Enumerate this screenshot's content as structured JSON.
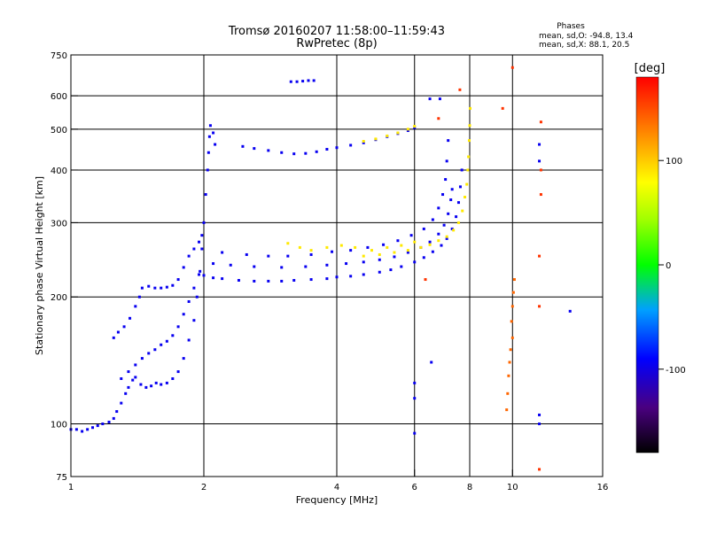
{
  "chart_data": {
    "type": "scatter",
    "title": "Tromsø 20160207 11:58:00–11:59:43",
    "subtitle": "RwPretec (8p)",
    "xlabel": "Frequency [MHz]",
    "ylabel": "Stationary phase Virtual Height [km]",
    "x_scale": "log",
    "y_scale": "log",
    "xlim": [
      1,
      16
    ],
    "ylim": [
      75,
      750
    ],
    "x_ticks": [
      {
        "v": 1,
        "label": "1"
      },
      {
        "v": 2,
        "label": "2"
      },
      {
        "v": 4,
        "label": "4"
      },
      {
        "v": 6,
        "label": "6"
      },
      {
        "v": 8,
        "label": "8"
      },
      {
        "v": 10,
        "label": "10"
      },
      {
        "v": 16,
        "label": "16"
      }
    ],
    "y_ticks": [
      {
        "v": 75,
        "label": "75"
      },
      {
        "v": 100,
        "label": "100"
      },
      {
        "v": 200,
        "label": "200"
      },
      {
        "v": 300,
        "label": "300"
      },
      {
        "v": 400,
        "label": "400"
      },
      {
        "v": 500,
        "label": "500"
      },
      {
        "v": 600,
        "label": "600"
      },
      {
        "v": 750,
        "label": "750"
      }
    ],
    "grid_x": [
      2,
      4,
      6,
      8,
      10
    ],
    "grid_y": [
      100,
      200,
      300,
      400,
      500,
      600
    ],
    "phase_box": {
      "title": "Phases",
      "line1": "mean, sd,O: -94.8, 13.4",
      "line2": "mean, sd,X:  88.1, 20.5"
    },
    "colorbar": {
      "label": "[deg]",
      "range": [
        -180,
        180
      ],
      "ticks": [
        {
          "v": 100,
          "label": "100"
        },
        {
          "v": 0,
          "label": "0"
        },
        {
          "v": -100,
          "label": "-100"
        }
      ]
    },
    "series": [
      {
        "id": "lowband-O",
        "phase": -95,
        "points": [
          [
            1.0,
            97
          ],
          [
            1.03,
            97
          ],
          [
            1.06,
            96
          ],
          [
            1.09,
            97
          ],
          [
            1.12,
            98
          ],
          [
            1.15,
            99
          ],
          [
            1.18,
            100
          ],
          [
            1.22,
            101
          ],
          [
            1.25,
            103
          ],
          [
            1.27,
            107
          ],
          [
            1.3,
            112
          ],
          [
            1.33,
            118
          ],
          [
            1.35,
            122
          ],
          [
            1.38,
            127
          ],
          [
            1.4,
            129
          ],
          [
            1.44,
            124
          ],
          [
            1.48,
            122
          ],
          [
            1.52,
            123
          ],
          [
            1.56,
            125
          ],
          [
            1.6,
            124
          ],
          [
            1.65,
            125
          ],
          [
            1.7,
            128
          ],
          [
            1.75,
            133
          ],
          [
            1.8,
            143
          ],
          [
            1.85,
            158
          ],
          [
            1.9,
            176
          ],
          [
            1.93,
            200
          ],
          [
            1.96,
            230
          ],
          [
            1.98,
            260
          ],
          [
            2.0,
            300
          ],
          [
            2.02,
            350
          ],
          [
            2.04,
            400
          ],
          [
            2.05,
            440
          ],
          [
            2.06,
            480
          ],
          [
            2.07,
            510
          ],
          [
            2.1,
            490
          ],
          [
            2.12,
            460
          ]
        ]
      },
      {
        "id": "lowband-O-upper",
        "phase": -95,
        "points": [
          [
            1.25,
            160
          ],
          [
            1.28,
            165
          ],
          [
            1.32,
            170
          ],
          [
            1.36,
            178
          ],
          [
            1.4,
            190
          ],
          [
            1.43,
            200
          ],
          [
            1.45,
            210
          ],
          [
            1.5,
            212
          ],
          [
            1.55,
            210
          ],
          [
            1.6,
            210
          ],
          [
            1.65,
            211
          ],
          [
            1.7,
            213
          ],
          [
            1.75,
            220
          ],
          [
            1.8,
            235
          ],
          [
            1.85,
            250
          ],
          [
            1.9,
            260
          ],
          [
            1.95,
            270
          ],
          [
            1.98,
            280
          ]
        ]
      },
      {
        "id": "lowband-secondary",
        "phase": -95,
        "points": [
          [
            1.3,
            128
          ],
          [
            1.35,
            133
          ],
          [
            1.4,
            138
          ],
          [
            1.45,
            143
          ],
          [
            1.5,
            147
          ],
          [
            1.55,
            150
          ],
          [
            1.6,
            154
          ],
          [
            1.65,
            157
          ],
          [
            1.7,
            162
          ],
          [
            1.75,
            170
          ],
          [
            1.8,
            182
          ],
          [
            1.85,
            195
          ],
          [
            1.9,
            210
          ],
          [
            1.95,
            226
          ]
        ]
      },
      {
        "id": "F-region-O",
        "phase": -95,
        "points": [
          [
            2.0,
            225
          ],
          [
            2.1,
            222
          ],
          [
            2.2,
            221
          ],
          [
            2.4,
            219
          ],
          [
            2.6,
            218
          ],
          [
            2.8,
            218
          ],
          [
            3.0,
            218
          ],
          [
            3.2,
            219
          ],
          [
            3.5,
            220
          ],
          [
            3.8,
            221
          ],
          [
            4.0,
            223
          ],
          [
            4.3,
            224
          ],
          [
            4.6,
            226
          ],
          [
            5.0,
            229
          ],
          [
            5.3,
            232
          ],
          [
            5.6,
            236
          ],
          [
            6.0,
            242
          ],
          [
            6.3,
            248
          ],
          [
            6.6,
            256
          ],
          [
            6.9,
            265
          ],
          [
            7.1,
            275
          ],
          [
            7.3,
            290
          ],
          [
            7.45,
            310
          ],
          [
            7.55,
            335
          ],
          [
            7.62,
            365
          ],
          [
            7.68,
            400
          ]
        ]
      },
      {
        "id": "F-region-O2",
        "phase": -95,
        "points": [
          [
            2.1,
            240
          ],
          [
            2.3,
            238
          ],
          [
            2.6,
            236
          ],
          [
            3.0,
            235
          ],
          [
            3.4,
            236
          ],
          [
            3.8,
            238
          ],
          [
            4.2,
            240
          ],
          [
            4.6,
            242
          ],
          [
            5.0,
            245
          ],
          [
            5.4,
            249
          ],
          [
            5.8,
            255
          ],
          [
            6.2,
            262
          ],
          [
            6.5,
            270
          ],
          [
            6.8,
            282
          ],
          [
            7.0,
            296
          ],
          [
            7.15,
            315
          ],
          [
            7.25,
            340
          ],
          [
            7.3,
            360
          ]
        ]
      },
      {
        "id": "F-region-O-multi",
        "phase": -95,
        "points": [
          [
            2.2,
            255
          ],
          [
            2.5,
            252
          ],
          [
            2.8,
            250
          ],
          [
            3.1,
            250
          ],
          [
            3.5,
            252
          ],
          [
            3.9,
            256
          ],
          [
            4.3,
            258
          ],
          [
            4.7,
            262
          ],
          [
            5.1,
            266
          ],
          [
            5.5,
            272
          ],
          [
            5.9,
            280
          ],
          [
            6.3,
            290
          ],
          [
            6.6,
            305
          ],
          [
            6.8,
            325
          ],
          [
            6.95,
            350
          ],
          [
            7.05,
            380
          ],
          [
            7.1,
            420
          ],
          [
            7.15,
            470
          ]
        ]
      },
      {
        "id": "F-region-X",
        "phase": 88,
        "points": [
          [
            4.6,
            250
          ],
          [
            5.0,
            252
          ],
          [
            5.4,
            255
          ],
          [
            5.8,
            258
          ],
          [
            6.2,
            262
          ],
          [
            6.5,
            266
          ],
          [
            6.8,
            272
          ],
          [
            7.1,
            278
          ],
          [
            7.35,
            288
          ],
          [
            7.55,
            300
          ],
          [
            7.7,
            320
          ],
          [
            7.8,
            345
          ],
          [
            7.88,
            370
          ],
          [
            7.92,
            400
          ],
          [
            7.95,
            430
          ],
          [
            7.98,
            470
          ],
          [
            8.0,
            510
          ],
          [
            8.02,
            560
          ]
        ]
      },
      {
        "id": "X-scattered",
        "phase": 88,
        "points": [
          [
            3.1,
            268
          ],
          [
            3.3,
            262
          ],
          [
            3.5,
            258
          ],
          [
            3.8,
            262
          ],
          [
            4.1,
            265
          ],
          [
            4.4,
            262
          ],
          [
            4.8,
            258
          ],
          [
            5.2,
            262
          ],
          [
            5.6,
            265
          ],
          [
            6.0,
            270
          ]
        ]
      },
      {
        "id": "echo-2F",
        "phase": -95,
        "points": [
          [
            2.45,
            455
          ],
          [
            2.6,
            450
          ],
          [
            2.8,
            445
          ],
          [
            3.0,
            440
          ],
          [
            3.2,
            437
          ],
          [
            3.4,
            438
          ],
          [
            3.6,
            442
          ],
          [
            3.8,
            448
          ],
          [
            4.0,
            452
          ],
          [
            4.3,
            458
          ],
          [
            4.6,
            464
          ],
          [
            4.9,
            472
          ],
          [
            5.2,
            480
          ],
          [
            5.5,
            488
          ],
          [
            5.8,
            496
          ],
          [
            6.0,
            504
          ]
        ]
      },
      {
        "id": "echo-2F-X",
        "phase": 88,
        "points": [
          [
            4.6,
            468
          ],
          [
            4.9,
            474
          ],
          [
            5.2,
            482
          ],
          [
            5.5,
            490
          ],
          [
            5.8,
            500
          ],
          [
            6.0,
            508
          ]
        ]
      },
      {
        "id": "sporadic-top",
        "phase": -95,
        "points": [
          [
            3.15,
            648
          ],
          [
            3.25,
            648
          ],
          [
            3.35,
            650
          ],
          [
            3.45,
            652
          ],
          [
            3.55,
            652
          ]
        ]
      },
      {
        "id": "scatter-noise",
        "phase": 140,
        "points": [
          [
            10.0,
            190
          ],
          [
            10.05,
            205
          ],
          [
            10.1,
            220
          ],
          [
            9.95,
            175
          ],
          [
            10.0,
            160
          ],
          [
            9.9,
            150
          ],
          [
            9.85,
            140
          ],
          [
            9.8,
            130
          ],
          [
            9.75,
            118
          ],
          [
            9.7,
            108
          ]
        ]
      },
      {
        "id": "scatter-noise-blue",
        "phase": -95,
        "points": [
          [
            11.5,
            460
          ],
          [
            11.5,
            420
          ],
          [
            11.5,
            105
          ],
          [
            11.5,
            100
          ],
          [
            13.5,
            185
          ],
          [
            6.5,
            590
          ],
          [
            6.85,
            590
          ],
          [
            6.55,
            140
          ],
          [
            6.0,
            125
          ],
          [
            6.0,
            115
          ],
          [
            6.0,
            95
          ]
        ]
      },
      {
        "id": "scatter-noise-warm",
        "phase": 160,
        "points": [
          [
            11.6,
            520
          ],
          [
            11.6,
            400
          ],
          [
            11.6,
            350
          ],
          [
            11.5,
            250
          ],
          [
            11.5,
            190
          ],
          [
            10.0,
            700
          ],
          [
            9.5,
            560
          ],
          [
            6.8,
            530
          ],
          [
            7.6,
            620
          ],
          [
            11.5,
            78
          ],
          [
            6.35,
            220
          ]
        ]
      }
    ]
  }
}
